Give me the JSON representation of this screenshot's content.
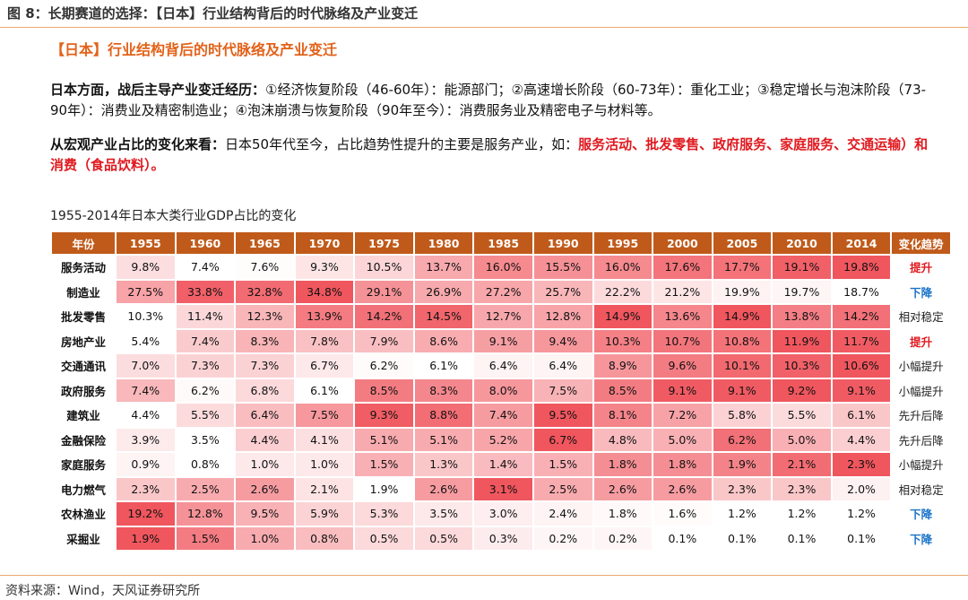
{
  "figure_title": "图 8：长期赛道的选择：【日本】行业结构背后的时代脉络及产业变迁",
  "subtitle": "【日本】行业结构背后的时代脉络及产业变迁",
  "para1": {
    "lead": "日本方面，战后主导产业变迁经历：",
    "body": "①经济恢复阶段（46-60年）：能源部门；②高速增长阶段（60-73年）：重化工业；③稳定增长与泡沫阶段（73-90年）：消费业及精密制造业；④泡沫崩溃与恢复阶段（90年至今）：消费服务业及精密电子与材料等。"
  },
  "para2": {
    "lead": "从宏观产业占比的变化来看：",
    "body": "日本50年代至今，占比趋势性提升的主要是服务产业，如：",
    "highlight": "服务活动、批发零售、政府服务、家庭服务、交通运输）和消费（食品饮料）。"
  },
  "table_title": "1955-2014年日本大类行业GDP占比的变化",
  "table": {
    "header_label": "年份",
    "trend_header": "变化趋势",
    "years": [
      "1955",
      "1960",
      "1965",
      "1970",
      "1975",
      "1980",
      "1985",
      "1990",
      "1995",
      "2000",
      "2005",
      "2010",
      "2014"
    ],
    "rows": [
      {
        "name": "服务活动",
        "values": [
          9.8,
          7.4,
          7.6,
          9.3,
          10.5,
          13.7,
          16.0,
          15.5,
          16.0,
          17.6,
          17.7,
          19.1,
          19.8
        ],
        "trend": "提升",
        "trend_type": "up"
      },
      {
        "name": "制造业",
        "values": [
          27.5,
          33.8,
          32.8,
          34.8,
          29.1,
          26.9,
          27.2,
          25.7,
          22.2,
          21.2,
          19.9,
          19.7,
          18.7
        ],
        "trend": "下降",
        "trend_type": "down"
      },
      {
        "name": "批发零售",
        "values": [
          10.3,
          11.4,
          12.3,
          13.9,
          14.2,
          14.5,
          12.7,
          12.8,
          14.9,
          13.6,
          14.9,
          13.8,
          14.2
        ],
        "trend": "相对稳定",
        "trend_type": "flat"
      },
      {
        "name": "房地产业",
        "values": [
          5.4,
          7.4,
          8.3,
          7.8,
          7.9,
          8.6,
          9.1,
          9.4,
          10.3,
          10.7,
          10.8,
          11.9,
          11.7
        ],
        "trend": "提升",
        "trend_type": "up"
      },
      {
        "name": "交通通讯",
        "values": [
          7.0,
          7.3,
          7.3,
          6.7,
          6.2,
          6.1,
          6.4,
          6.4,
          8.9,
          9.6,
          10.1,
          10.3,
          10.6
        ],
        "trend": "小幅提升",
        "trend_type": "flat"
      },
      {
        "name": "政府服务",
        "values": [
          7.4,
          6.2,
          6.8,
          6.1,
          8.5,
          8.3,
          8.0,
          7.5,
          8.5,
          9.1,
          9.1,
          9.2,
          9.1
        ],
        "trend": "小幅提升",
        "trend_type": "flat"
      },
      {
        "name": "建筑业",
        "values": [
          4.4,
          5.5,
          6.4,
          7.5,
          9.3,
          8.8,
          7.4,
          9.5,
          8.1,
          7.2,
          5.8,
          5.5,
          6.1
        ],
        "trend": "先升后降",
        "trend_type": "flat"
      },
      {
        "name": "金融保险",
        "values": [
          3.9,
          3.5,
          4.4,
          4.1,
          5.1,
          5.1,
          5.2,
          6.7,
          4.8,
          5.0,
          6.2,
          5.0,
          4.4
        ],
        "trend": "先升后降",
        "trend_type": "flat"
      },
      {
        "name": "家庭服务",
        "values": [
          0.9,
          0.8,
          1.0,
          1.0,
          1.5,
          1.3,
          1.4,
          1.5,
          1.8,
          1.8,
          1.9,
          2.1,
          2.3
        ],
        "trend": "小幅提升",
        "trend_type": "flat"
      },
      {
        "name": "电力燃气",
        "values": [
          2.3,
          2.5,
          2.6,
          2.1,
          1.9,
          2.6,
          3.1,
          2.5,
          2.6,
          2.6,
          2.3,
          2.3,
          2.0
        ],
        "trend": "相对稳定",
        "trend_type": "flat"
      },
      {
        "name": "农林渔业",
        "values": [
          19.2,
          12.8,
          9.5,
          5.9,
          5.3,
          3.5,
          3.0,
          2.4,
          1.8,
          1.6,
          1.2,
          1.2,
          1.2
        ],
        "trend": "下降",
        "trend_type": "down"
      },
      {
        "name": "采掘业",
        "values": [
          1.9,
          1.5,
          1.0,
          0.8,
          0.5,
          0.5,
          0.3,
          0.2,
          0.2,
          0.1,
          0.1,
          0.1,
          0.1
        ],
        "trend": "下降",
        "trend_type": "down"
      }
    ]
  },
  "heat_colors": {
    "low": "#ffffff",
    "high": "#f0565e"
  },
  "source": "资料来源：Wind，天风证券研究所"
}
